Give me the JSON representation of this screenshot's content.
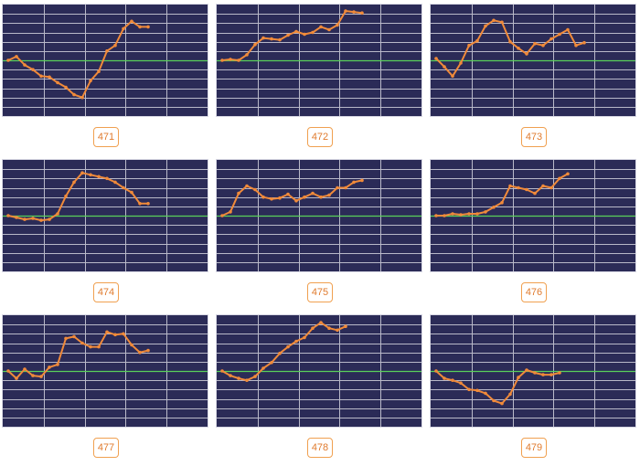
{
  "style": {
    "plot_bg": "#2b2b57",
    "grid_color": "#b9b9c9",
    "baseline_color": "#5ad05a",
    "line_color": "#f08a3a",
    "badge_border": "#f0a050",
    "badge_text": "#e07b2e"
  },
  "chart_data": [
    {
      "type": "line",
      "label": "471",
      "grid": true,
      "ylim": [
        0,
        12
      ],
      "baseline": 6,
      "values": [
        6.0,
        6.4,
        5.5,
        5.0,
        4.3,
        4.2,
        3.6,
        3.1,
        2.3,
        2.0,
        3.8,
        4.8,
        7.0,
        7.6,
        9.4,
        10.2,
        9.6,
        9.6
      ]
    },
    {
      "type": "line",
      "label": "472",
      "grid": true,
      "ylim": [
        0,
        12
      ],
      "baseline": 6,
      "values": [
        6.0,
        6.1,
        6.0,
        6.6,
        7.7,
        8.4,
        8.3,
        8.2,
        8.7,
        9.1,
        8.8,
        9.0,
        9.6,
        9.3,
        9.8,
        11.3,
        11.2,
        11.1
      ]
    },
    {
      "type": "line",
      "label": "473",
      "grid": true,
      "ylim": [
        0,
        12
      ],
      "baseline": 6,
      "values": [
        6.2,
        5.3,
        4.3,
        5.7,
        7.6,
        8.1,
        9.7,
        10.3,
        10.1,
        8.0,
        7.3,
        6.7,
        7.8,
        7.6,
        8.3,
        8.8,
        9.3,
        7.6,
        7.9
      ]
    },
    {
      "type": "line",
      "label": "474",
      "grid": true,
      "ylim": [
        0,
        12
      ],
      "baseline": 6,
      "values": [
        6.0,
        5.8,
        5.6,
        5.7,
        5.5,
        5.6,
        6.2,
        8.1,
        9.6,
        10.6,
        10.4,
        10.2,
        10.0,
        9.6,
        9.0,
        8.5,
        7.3,
        7.3
      ]
    },
    {
      "type": "line",
      "label": "475",
      "grid": true,
      "ylim": [
        0,
        12
      ],
      "baseline": 6,
      "values": [
        6.0,
        6.4,
        8.4,
        9.2,
        8.8,
        8.0,
        7.8,
        7.9,
        8.3,
        7.6,
        8.0,
        8.4,
        8.0,
        8.2,
        9.0,
        9.0,
        9.6,
        9.8
      ]
    },
    {
      "type": "line",
      "label": "476",
      "grid": true,
      "ylim": [
        0,
        12
      ],
      "baseline": 6,
      "values": [
        6.0,
        6.0,
        6.2,
        6.1,
        6.2,
        6.2,
        6.4,
        6.9,
        7.4,
        9.2,
        9.0,
        8.8,
        8.4,
        9.2,
        9.0,
        10.0,
        10.5
      ]
    },
    {
      "type": "line",
      "label": "477",
      "grid": true,
      "ylim": [
        0,
        12
      ],
      "baseline": 6,
      "values": [
        6.0,
        5.2,
        6.2,
        5.5,
        5.4,
        6.4,
        6.7,
        9.5,
        9.7,
        9.0,
        8.6,
        8.6,
        10.2,
        9.9,
        10.0,
        8.8,
        8.0,
        8.2
      ]
    },
    {
      "type": "line",
      "label": "478",
      "grid": true,
      "ylim": [
        0,
        12
      ],
      "baseline": 6,
      "values": [
        6.0,
        5.5,
        5.2,
        5.0,
        5.4,
        6.3,
        6.9,
        7.9,
        8.6,
        9.2,
        9.6,
        10.6,
        11.2,
        10.6,
        10.4,
        10.8
      ]
    },
    {
      "type": "line",
      "label": "479",
      "grid": true,
      "ylim": [
        0,
        12
      ],
      "baseline": 6,
      "values": [
        6.0,
        5.2,
        5.0,
        4.7,
        4.0,
        3.9,
        3.6,
        2.8,
        2.5,
        3.5,
        5.3,
        6.1,
        5.8,
        5.6,
        5.6,
        5.8
      ]
    }
  ]
}
